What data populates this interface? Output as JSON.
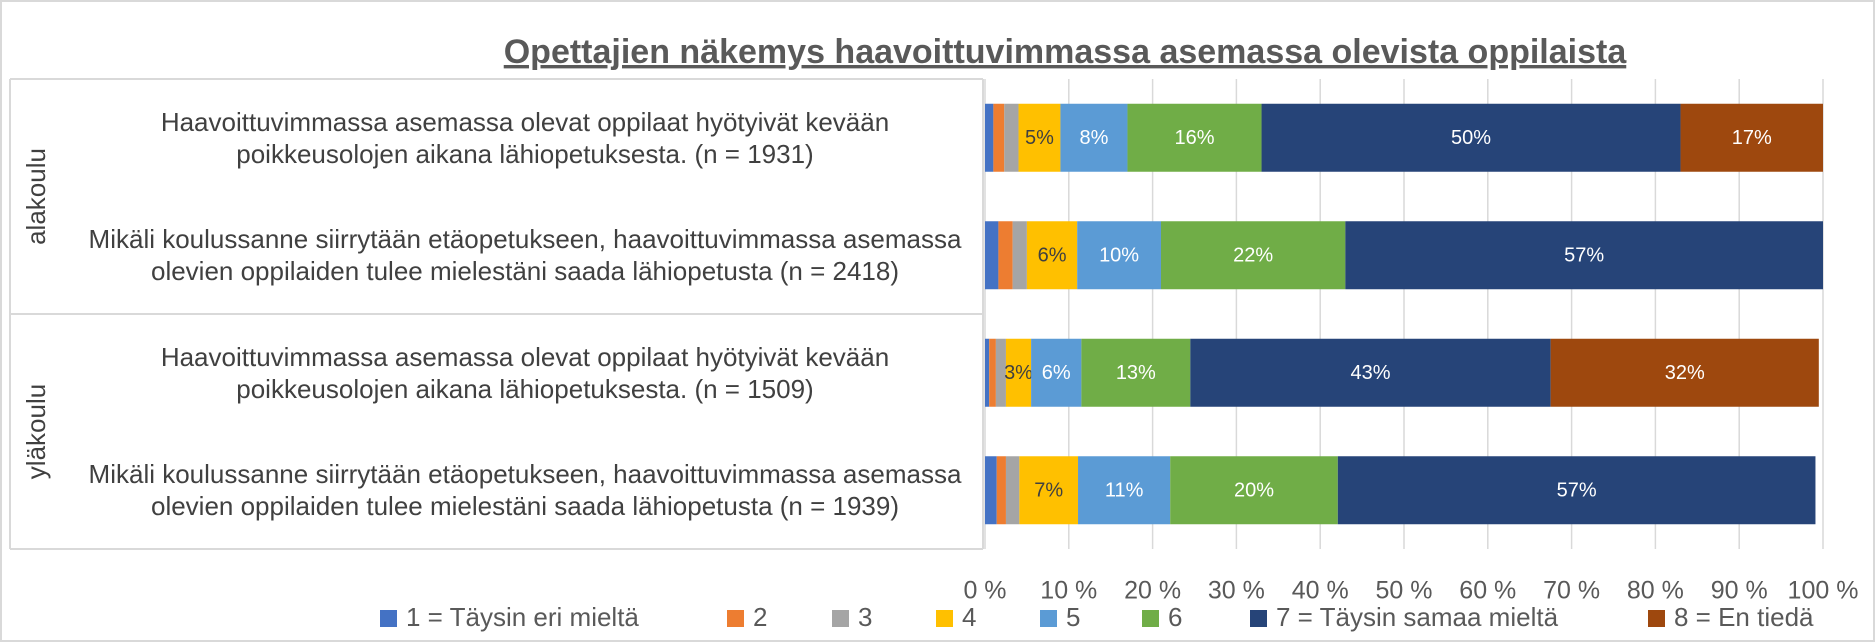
{
  "chart_data": {
    "type": "stacked-bar-horizontal",
    "title": "Opettajien näkemys haavoittuvimmassa asemassa olevista oppilaista",
    "groups": [
      {
        "label": "alakoulu",
        "rows": [
          0,
          1
        ]
      },
      {
        "label": "yläkoulu",
        "rows": [
          2,
          3
        ]
      }
    ],
    "categories": [
      "Haavoittuvimmassa asemassa olevat oppilaat hyötyivät kevään poikkeusolojen aikana lähiopetuksesta. (n = 1931)",
      "Mikäli koulussanne siirrytään etäopetukseen, haavoittuvimmassa asemassa olevien oppilaiden tulee mielestäni saada lähiopetusta (n = 2418)",
      "Haavoittuvimmassa asemassa olevat oppilaat hyötyivät kevään poikkeusolojen aikana lähiopetuksesta. (n = 1509)",
      "Mikäli koulussanne siirrytään etäopetukseen, haavoittuvimmassa asemassa olevien oppilaiden tulee mielestäni saada lähiopetusta (n = 1939)"
    ],
    "series": [
      {
        "name": "1 = Täysin eri mieltä",
        "color": "#4472c4",
        "values": [
          1,
          1.6,
          0.5,
          1.4
        ],
        "value_labels": [
          null,
          null,
          null,
          null
        ]
      },
      {
        "name": "2",
        "color": "#ed7d31",
        "values": [
          1.3,
          1.7,
          0.8,
          1.1
        ],
        "value_labels": [
          null,
          null,
          null,
          null
        ]
      },
      {
        "name": "3",
        "color": "#a5a5a5",
        "values": [
          1.7,
          1.7,
          1.2,
          1.6
        ],
        "value_labels": [
          null,
          null,
          null,
          null
        ]
      },
      {
        "name": "4",
        "color": "#ffc000",
        "values": [
          5,
          6,
          3,
          7
        ],
        "value_labels": [
          "5%",
          "6%",
          "3%",
          "7%"
        ]
      },
      {
        "name": "5",
        "color": "#5b9bd5",
        "values": [
          8,
          10,
          6,
          11
        ],
        "value_labels": [
          "8%",
          "10%",
          "6%",
          "11%"
        ]
      },
      {
        "name": "6",
        "color": "#70ad47",
        "values": [
          16,
          22,
          13,
          20
        ],
        "value_labels": [
          "16%",
          "22%",
          "13%",
          "20%"
        ]
      },
      {
        "name": "7 = Täysin samaa mieltä",
        "color": "#264478",
        "values": [
          50,
          57,
          43,
          57
        ],
        "value_labels": [
          "50%",
          "57%",
          "43%",
          "57%"
        ]
      },
      {
        "name": "8 = En tiedä",
        "color": "#9e480e",
        "values": [
          17,
          0,
          32,
          0
        ],
        "value_labels": [
          "17%",
          null,
          "32%",
          null
        ]
      }
    ],
    "xlim": [
      0,
      100
    ],
    "xticks": [
      {
        "value": 0,
        "label": "0 %"
      },
      {
        "value": 10,
        "label": "10 %"
      },
      {
        "value": 20,
        "label": "20 %"
      },
      {
        "value": 30,
        "label": "30 %"
      },
      {
        "value": 40,
        "label": "40 %"
      },
      {
        "value": 50,
        "label": "50 %"
      },
      {
        "value": 60,
        "label": "60 %"
      },
      {
        "value": 70,
        "label": "70 %"
      },
      {
        "value": 80,
        "label": "80 %"
      },
      {
        "value": 90,
        "label": "90 %"
      },
      {
        "value": 100,
        "label": "100 %"
      }
    ],
    "grid": true,
    "legend": "bottom"
  }
}
